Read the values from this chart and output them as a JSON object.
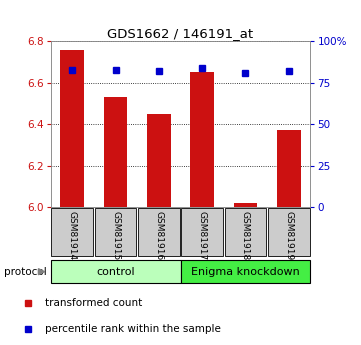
{
  "title": "GDS1662 / 146191_at",
  "categories": [
    "GSM81914",
    "GSM81915",
    "GSM81916",
    "GSM81917",
    "GSM81918",
    "GSM81919"
  ],
  "bar_values": [
    6.76,
    6.53,
    6.45,
    6.65,
    6.02,
    6.37
  ],
  "percentile_values": [
    83,
    83,
    82,
    84,
    81,
    82
  ],
  "ylim_left": [
    6.0,
    6.8
  ],
  "ylim_right": [
    0,
    100
  ],
  "yticks_left": [
    6.0,
    6.2,
    6.4,
    6.6,
    6.8
  ],
  "yticks_right": [
    0,
    25,
    50,
    75,
    100
  ],
  "bar_color": "#cc1111",
  "dot_color": "#0000cc",
  "bar_width": 0.55,
  "protocol_labels": [
    "control",
    "Enigma knockdown"
  ],
  "protocol_groups": [
    3,
    3
  ],
  "protocol_color_light": "#bbffbb",
  "protocol_color_green": "#44ee44",
  "legend_bar_label": "transformed count",
  "legend_dot_label": "percentile rank within the sample",
  "left_axis_color": "#cc1111",
  "right_axis_color": "#0000cc",
  "grid_color": "#000000",
  "background_color": "#ffffff",
  "cell_bg": "#cccccc"
}
